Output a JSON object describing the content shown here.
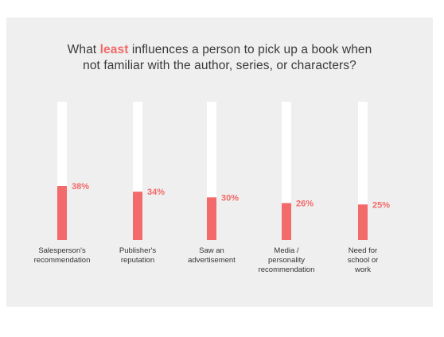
{
  "chart_data": {
    "type": "bar",
    "title_parts": {
      "before": "What ",
      "emphasis": "least",
      "after_line1": " influences a person to pick up a book when",
      "line2": "not familiar with the author, series, or characters?"
    },
    "categories": [
      [
        "Salesperson's",
        "recommendation"
      ],
      [
        "Publisher's",
        "reputation"
      ],
      [
        "Saw an",
        "advertisement"
      ],
      [
        "Media /",
        "personality",
        "recommendation"
      ],
      [
        "Need for",
        "school or",
        "work"
      ]
    ],
    "values": [
      38,
      34,
      30,
      26,
      25
    ],
    "value_labels": [
      "38%",
      "34%",
      "30%",
      "26%",
      "25%"
    ],
    "ylim": [
      0,
      100
    ],
    "grid": false,
    "colors": {
      "bar_fill": "#f26a6a",
      "track": "#ffffff",
      "label": "#f26a6a",
      "background": "#efefef"
    }
  }
}
